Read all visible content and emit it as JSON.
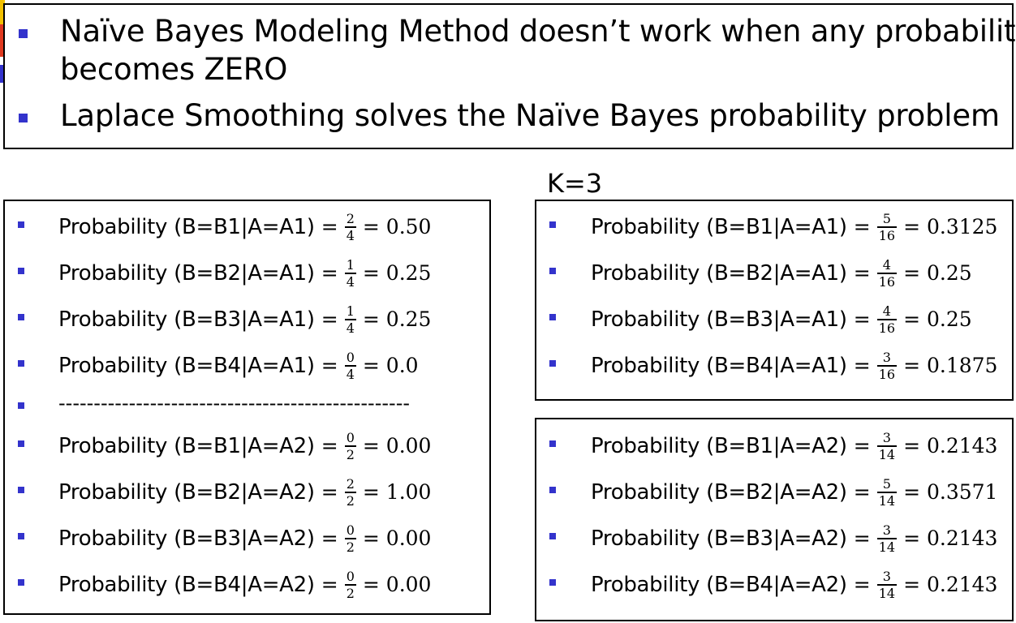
{
  "colors": {
    "bullet": "#3333cc",
    "deco_yellow": "#f2c000",
    "deco_red": "#e03a20"
  },
  "header": {
    "bullets": [
      "Naïve Bayes Modeling Method doesn’t work when any probability",
      "becomes ZERO",
      "Laplace Smoothing solves the Naïve Bayes probability problem"
    ]
  },
  "k_label": "K=3",
  "left_panel": {
    "group1": [
      {
        "label": "Probability (B=B1|A=A1)",
        "eq": "=",
        "num": "2",
        "den": "4",
        "result": "= 0.50"
      },
      {
        "label": "Probability (B=B2|A=A1)",
        "eq": "=",
        "num": "1",
        "den": "4",
        "result": "= 0.25"
      },
      {
        "label": "Probability (B=B3|A=A1)",
        "eq": "=",
        "num": "1",
        "den": "4",
        "result": "= 0.25"
      },
      {
        "label": "Probability (B=B4|A=A1)",
        "eq": "=",
        "num": "0",
        "den": "4",
        "result": "= 0.0"
      }
    ],
    "separator": "--------------------------------------------------",
    "group2": [
      {
        "label": "Probability (B=B1|A=A2)",
        "eq": "=",
        "num": "0",
        "den": "2",
        "result": "= 0.00"
      },
      {
        "label": "Probability (B=B2|A=A2)",
        "eq": "=",
        "num": "2",
        "den": "2",
        "result": "= 1.00"
      },
      {
        "label": "Probability (B=B3|A=A2)",
        "eq": "=",
        "num": "0",
        "den": "2",
        "result": "= 0.00"
      },
      {
        "label": "Probability (B=B4|A=A2)",
        "eq": "=",
        "num": "0",
        "den": "2",
        "result": "= 0.00"
      }
    ]
  },
  "right_top_panel": [
    {
      "label": "Probability (B=B1|A=A1)",
      "eq": "=",
      "num": "5",
      "den": "16",
      "result": "= 0.3125"
    },
    {
      "label": "Probability (B=B2|A=A1)",
      "eq": "=",
      "num": "4",
      "den": "16",
      "result": "= 0.25"
    },
    {
      "label": "Probability (B=B3|A=A1)",
      "eq": "=",
      "num": "4",
      "den": "16",
      "result": "= 0.25"
    },
    {
      "label": "Probability (B=B4|A=A1)",
      "eq": "=",
      "num": "3",
      "den": "16",
      "result": "= 0.1875"
    }
  ],
  "right_bottom_panel": [
    {
      "label": "Probability (B=B1|A=A2)",
      "eq": "=",
      "num": "3",
      "den": "14",
      "result": "= 0.2143"
    },
    {
      "label": "Probability (B=B2|A=A2)",
      "eq": "=",
      "num": "5",
      "den": "14",
      "result": "= 0.3571"
    },
    {
      "label": "Probability (B=B3|A=A2)",
      "eq": "=",
      "num": "3",
      "den": "14",
      "result": "= 0.2143"
    },
    {
      "label": "Probability (B=B4|A=A2)",
      "eq": "=",
      "num": "3",
      "den": "14",
      "result": "= 0.2143"
    }
  ]
}
